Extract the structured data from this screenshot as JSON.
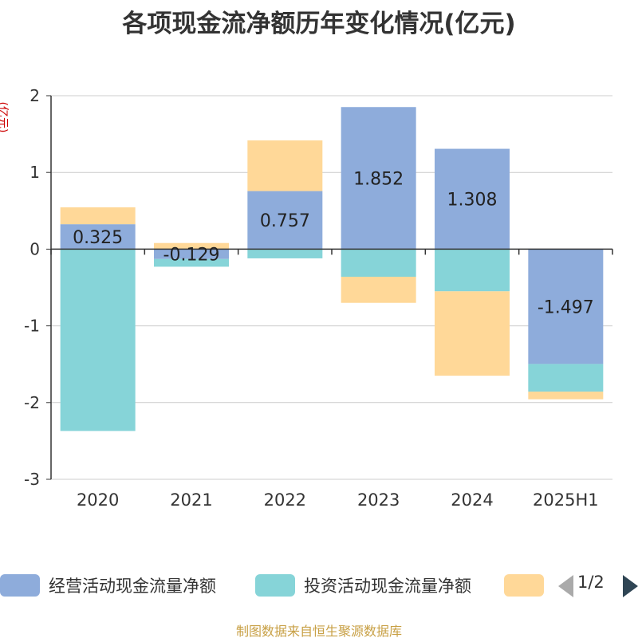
{
  "chart_data": {
    "type": "bar",
    "stacked": true,
    "title": "各项现金流净额历年变化情况(亿元)",
    "ylabel": "(亿元)",
    "ylim": [
      -3,
      2
    ],
    "yticks": [
      2,
      1,
      0,
      -1,
      -2,
      -3
    ],
    "grid": true,
    "legend_position": "bottom",
    "categories": [
      "2020",
      "2021",
      "2022",
      "2023",
      "2024",
      "2025H1"
    ],
    "series": [
      {
        "name": "经营活动现金流量净额",
        "color": "#8eacdb",
        "values": [
          0.325,
          -0.129,
          0.757,
          1.852,
          1.308,
          -1.497
        ],
        "labels": [
          "0.325",
          "-0.129",
          "0.757",
          "1.852",
          "1.308",
          "-1.497"
        ]
      },
      {
        "name": "投资活动现金流量净额",
        "color": "#86d4d8",
        "values": [
          -2.37,
          -0.1,
          -0.12,
          -0.36,
          -0.55,
          -0.36
        ]
      },
      {
        "name": "",
        "color": "#ffd898",
        "values": [
          0.22,
          0.08,
          0.66,
          -0.34,
          -1.1,
          -0.1
        ]
      }
    ]
  },
  "legend": {
    "pager": "1/2",
    "prev_icon": "triangle-left-icon",
    "next_icon": "triangle-right-icon"
  },
  "source": "制图数据来自恒生聚源数据库"
}
